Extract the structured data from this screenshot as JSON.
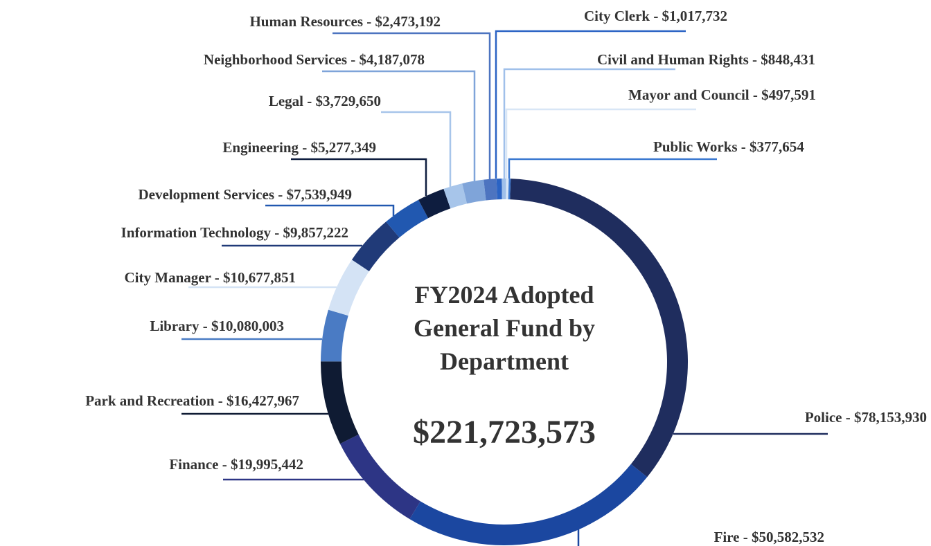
{
  "chart_data": {
    "type": "donut",
    "title": [
      "FY2024 Adopted",
      "General Fund by",
      "Department"
    ],
    "total": 221723573,
    "total_label": "$221,723,573",
    "categories": [
      "Police - $78,153,930",
      "Fire - $50,582,532",
      "Finance - $19,995,442",
      "Park and Recreation - $16,427,967",
      "Library - $10,080,003",
      "City Manager - $10,677,851",
      "Information Technology - $9,857,222",
      "Development Services - $7,539,949",
      "Engineering - $5,277,349",
      "Legal - $3,729,650",
      "Neighborhood Services - $4,187,078",
      "Human Resources - $2,473,192",
      "City Clerk - $1,017,732",
      "Civil and Human Rights - $848,431",
      "Mayor and Council - $497,591",
      "Public Works - $377,654"
    ],
    "values": [
      78153930,
      50582532,
      19995442,
      16427967,
      10080003,
      10677851,
      9857222,
      7539949,
      5277349,
      3729650,
      4187078,
      2473192,
      1017732,
      848431,
      497591,
      377654
    ],
    "colors": [
      "#1f2d5e",
      "#1b47a0",
      "#2d3585",
      "#0f1b33",
      "#4a7bc4",
      "#d4e3f5",
      "#203a78",
      "#2158b0",
      "#0e1d3f",
      "#a7c5ea",
      "#7fa4d9",
      "#4d74c0",
      "#2a63c4",
      "#a0c0ea",
      "#d8e6f6",
      "#3a78d0"
    ]
  }
}
